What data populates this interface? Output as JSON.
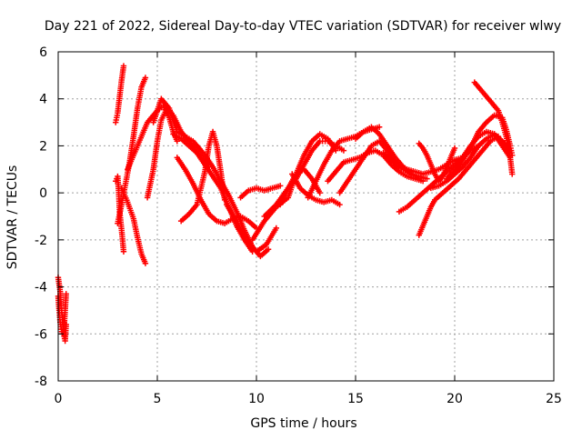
{
  "chart_data": {
    "type": "scatter",
    "title": "Day 221 of 2022, Sidereal Day-to-day VTEC variation (SDTVAR) for receiver wlwy",
    "xlabel": "GPS time / hours",
    "ylabel": "SDTVAR / TECUs",
    "xlim": [
      0,
      25
    ],
    "ylim": [
      -8,
      6
    ],
    "xticks": [
      "0",
      "5",
      "10",
      "15",
      "20",
      "25"
    ],
    "yticks": [
      "-8",
      "-6",
      "-4",
      "-2",
      "0",
      "2",
      "4",
      "6"
    ],
    "grid": true,
    "legend": "none",
    "marker": "+",
    "color": "#ff0000",
    "series": [
      {
        "x": [
          0.0,
          0.1,
          0.15,
          0.2,
          0.25,
          0.3,
          0.35,
          0.4
        ],
        "y": [
          -3.6,
          -4.2,
          -4.8,
          -5.3,
          -5.8,
          -6.1,
          -6.3,
          -5.6
        ]
      },
      {
        "x": [
          0.0,
          0.05,
          0.1,
          0.2,
          0.3,
          0.4
        ],
        "y": [
          -4.4,
          -5.0,
          -5.5,
          -6.0,
          -5.7,
          -4.3
        ]
      },
      {
        "x": [
          2.9,
          3.0,
          3.1,
          3.2,
          3.3
        ],
        "y": [
          3.0,
          3.4,
          4.1,
          4.8,
          5.4
        ]
      },
      {
        "x": [
          2.9,
          3.0,
          3.05,
          3.1,
          3.2,
          3.3
        ],
        "y": [
          0.5,
          0.7,
          0.1,
          -0.8,
          -1.6,
          -2.5
        ]
      },
      {
        "x": [
          3.0,
          3.2,
          3.4,
          3.6,
          3.8,
          4.0,
          4.2,
          4.4
        ],
        "y": [
          -1.3,
          -0.5,
          0.4,
          1.3,
          2.4,
          3.6,
          4.5,
          4.9
        ]
      },
      {
        "x": [
          3.2,
          3.5,
          3.8,
          4.0,
          4.2,
          4.4
        ],
        "y": [
          0.2,
          -0.4,
          -1.1,
          -1.9,
          -2.6,
          -3.0
        ]
      },
      {
        "x": [
          3.5,
          4.0,
          4.5,
          5.0,
          5.3,
          5.6,
          5.8,
          6.0
        ],
        "y": [
          1.0,
          2.0,
          3.0,
          3.5,
          3.7,
          3.2,
          2.6,
          2.2
        ]
      },
      {
        "x": [
          4.5,
          4.8,
          5.0,
          5.2,
          5.5,
          5.8,
          6.2,
          6.6,
          7.0,
          7.4,
          7.6
        ],
        "y": [
          -0.2,
          1.0,
          2.2,
          3.1,
          3.6,
          3.3,
          2.6,
          2.2,
          1.7,
          1.4,
          1.1
        ]
      },
      {
        "x": [
          4.8,
          5.2,
          5.6,
          6.0,
          6.4,
          6.8,
          7.2
        ],
        "y": [
          3.0,
          4.0,
          3.6,
          2.6,
          2.4,
          2.2,
          1.8
        ]
      },
      {
        "x": [
          5.8,
          6.2,
          6.6,
          7.0,
          7.4,
          7.8,
          8.2,
          8.6,
          9.0,
          9.4,
          9.8
        ],
        "y": [
          2.5,
          2.3,
          2.0,
          1.7,
          1.2,
          0.7,
          0.2,
          -0.6,
          -1.4,
          -2.0,
          -2.5
        ]
      },
      {
        "x": [
          6.0,
          6.4,
          6.8,
          7.2,
          7.6,
          8.0,
          8.4,
          8.8,
          9.2,
          9.6,
          10.0
        ],
        "y": [
          1.5,
          1.0,
          0.4,
          -0.3,
          -0.9,
          -1.2,
          -1.3,
          -1.1,
          -1.0,
          -1.2,
          -1.5
        ]
      },
      {
        "x": [
          6.2,
          6.6,
          7.0,
          7.4,
          7.6,
          7.8,
          8.0,
          8.2,
          8.4
        ],
        "y": [
          -1.2,
          -0.9,
          -0.5,
          0.9,
          2.0,
          2.6,
          2.0,
          0.9,
          -0.3
        ]
      },
      {
        "x": [
          7.0,
          7.4,
          7.8,
          8.2,
          8.6,
          9.0,
          9.4,
          9.8,
          10.2,
          10.6
        ],
        "y": [
          2.0,
          1.6,
          1.1,
          0.5,
          -0.1,
          -0.8,
          -1.6,
          -2.3,
          -2.7,
          -2.4
        ]
      },
      {
        "x": [
          8.5,
          9.0,
          9.5,
          10.0,
          10.5,
          11.0
        ],
        "y": [
          -0.5,
          -1.2,
          -2.0,
          -2.5,
          -2.2,
          -1.5
        ]
      },
      {
        "x": [
          9.2,
          9.6,
          10.0,
          10.4,
          10.8,
          11.2
        ],
        "y": [
          -0.2,
          0.1,
          0.2,
          0.1,
          0.2,
          0.3
        ]
      },
      {
        "x": [
          9.8,
          10.4,
          11.0,
          11.6,
          12.0,
          12.4,
          12.8,
          13.2,
          13.6,
          14.0
        ],
        "y": [
          -2.0,
          -1.2,
          -0.6,
          -0.2,
          0.8,
          1.6,
          2.2,
          2.5,
          2.3,
          1.8
        ]
      },
      {
        "x": [
          10.4,
          11.0,
          11.6,
          12.0,
          12.4,
          12.8,
          13.2
        ],
        "y": [
          -1.0,
          -0.5,
          0.2,
          0.8,
          1.0,
          0.6,
          0.0
        ]
      },
      {
        "x": [
          11.2,
          11.6,
          12.0,
          12.4,
          12.8,
          13.2,
          13.6,
          14.0,
          14.4
        ],
        "y": [
          -0.5,
          0.2,
          0.6,
          1.2,
          1.8,
          2.2,
          2.2,
          2.0,
          1.8
        ]
      },
      {
        "x": [
          11.8,
          12.2,
          12.6,
          13.0,
          13.4,
          13.8,
          14.2
        ],
        "y": [
          0.8,
          0.2,
          -0.1,
          -0.3,
          -0.4,
          -0.3,
          -0.5
        ]
      },
      {
        "x": [
          12.6,
          13.0,
          13.4,
          13.8,
          14.2,
          14.6,
          15.0,
          15.4,
          15.8,
          16.2
        ],
        "y": [
          -0.2,
          0.5,
          1.2,
          1.8,
          2.2,
          2.3,
          2.4,
          2.6,
          2.7,
          2.8
        ]
      },
      {
        "x": [
          13.6,
          14.0,
          14.4,
          14.8,
          15.2,
          15.6,
          16.0,
          16.4,
          16.8,
          17.2,
          17.6,
          18.0,
          18.4
        ],
        "y": [
          0.5,
          0.9,
          1.3,
          1.4,
          1.5,
          1.7,
          1.8,
          1.6,
          1.2,
          0.9,
          0.7,
          0.6,
          0.5
        ]
      },
      {
        "x": [
          14.2,
          14.6,
          15.0,
          15.4,
          15.8,
          16.2,
          16.6,
          17.0,
          17.4,
          17.8,
          18.2,
          18.6
        ],
        "y": [
          0.0,
          0.5,
          1.0,
          1.5,
          2.0,
          2.2,
          1.8,
          1.2,
          1.0,
          0.8,
          0.7,
          0.6
        ]
      },
      {
        "x": [
          15.0,
          15.4,
          15.8,
          16.2,
          16.6,
          17.0,
          17.4,
          17.8,
          18.2
        ],
        "y": [
          2.3,
          2.6,
          2.8,
          2.5,
          2.0,
          1.5,
          1.1,
          0.8,
          0.6
        ]
      },
      {
        "x": [
          16.4,
          16.8,
          17.2,
          17.6,
          18.0,
          18.4,
          18.8,
          19.2,
          19.6,
          20.0,
          20.4
        ],
        "y": [
          1.7,
          1.4,
          1.2,
          1.0,
          0.9,
          0.8,
          0.9,
          1.0,
          1.2,
          1.4,
          1.5
        ]
      },
      {
        "x": [
          17.2,
          17.6,
          18.0,
          18.4,
          18.8,
          19.2,
          19.6,
          20.0,
          20.4,
          20.8,
          21.2
        ],
        "y": [
          -0.8,
          -0.6,
          -0.3,
          0.0,
          0.3,
          0.6,
          0.9,
          1.2,
          1.5,
          1.8,
          2.0
        ]
      },
      {
        "x": [
          18.2,
          18.4,
          18.6,
          18.8,
          19.0,
          19.2,
          19.4,
          19.6,
          19.8,
          20.0
        ],
        "y": [
          2.1,
          1.9,
          1.6,
          1.2,
          0.8,
          0.5,
          0.7,
          1.1,
          1.5,
          1.9
        ]
      },
      {
        "x": [
          18.2,
          18.4,
          18.6,
          18.8,
          19.0,
          19.4,
          19.8,
          20.2,
          20.6,
          21.0,
          21.4,
          21.8,
          22.2
        ],
        "y": [
          -1.8,
          -1.4,
          -1.0,
          -0.6,
          -0.3,
          0.0,
          0.3,
          0.6,
          1.0,
          1.4,
          1.8,
          2.2,
          2.4
        ]
      },
      {
        "x": [
          18.8,
          19.2,
          19.6,
          20.0,
          20.4,
          20.8,
          21.2,
          21.6,
          22.0,
          22.4,
          22.8
        ],
        "y": [
          0.2,
          0.3,
          0.5,
          0.8,
          1.1,
          1.5,
          2.0,
          2.3,
          2.5,
          2.2,
          1.8
        ]
      },
      {
        "x": [
          19.6,
          20.0,
          20.4,
          20.8,
          21.2,
          21.6,
          22.0,
          22.4,
          22.8
        ],
        "y": [
          0.6,
          1.0,
          1.5,
          2.0,
          2.4,
          2.6,
          2.5,
          2.0,
          1.5
        ]
      },
      {
        "x": [
          20.0,
          20.4,
          20.8,
          21.2,
          21.6,
          22.0,
          22.4,
          22.6,
          22.8,
          22.9
        ],
        "y": [
          0.8,
          1.4,
          1.9,
          2.6,
          3.0,
          3.3,
          3.2,
          2.7,
          2.0,
          1.6
        ]
      },
      {
        "x": [
          21.0,
          21.4,
          21.8,
          22.2,
          22.4,
          22.6,
          22.8,
          22.9
        ],
        "y": [
          4.7,
          4.3,
          3.9,
          3.5,
          3.0,
          2.4,
          1.5,
          0.8
        ]
      }
    ]
  }
}
